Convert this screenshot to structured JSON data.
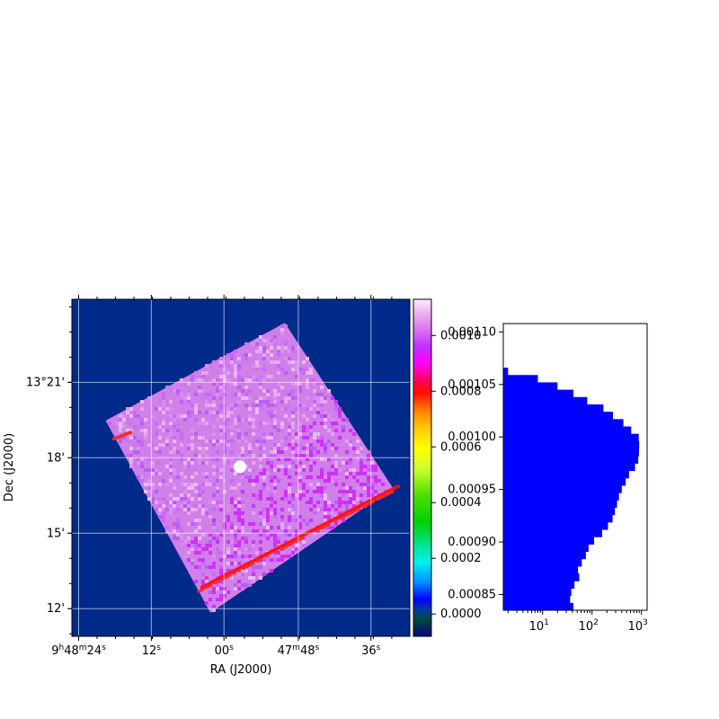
{
  "chart_data": [
    {
      "type": "heatmap",
      "title": "",
      "xlabel": "RA (J2000)",
      "ylabel": "Dec (J2000)",
      "grid": true,
      "background_color": "#002a8a",
      "x_ticks": [
        {
          "label": "9h48m24s",
          "pre": "9",
          "sup1": "h",
          "mid": "48",
          "sup2": "m",
          "post": "24",
          "sup3": "s",
          "pos": 0.02
        },
        {
          "label": "12s",
          "pre": "",
          "sup1": "",
          "mid": "",
          "sup2": "",
          "post": "12",
          "sup3": "s",
          "pos": 0.235
        },
        {
          "label": "00s",
          "pre": "",
          "sup1": "",
          "mid": "",
          "sup2": "",
          "post": "00",
          "sup3": "s",
          "pos": 0.45
        },
        {
          "label": "47m48s",
          "pre": "",
          "sup1": "",
          "mid": "47",
          "sup2": "m",
          "post": "48",
          "sup3": "s",
          "pos": 0.67
        },
        {
          "label": "36s",
          "pre": "",
          "sup1": "",
          "mid": "",
          "sup2": "",
          "post": "36",
          "sup3": "s",
          "pos": 0.885
        }
      ],
      "y_ticks": [
        {
          "label": "13°21'",
          "value": 21
        },
        {
          "label": "18'",
          "value": 18
        },
        {
          "label": "15'",
          "value": 15
        },
        {
          "label": "12'",
          "value": 12
        }
      ],
      "dec_range": [
        10.9,
        24.3
      ],
      "footprint": {
        "corners_fraction": [
          [
            0.1,
            0.36
          ],
          [
            0.63,
            0.07
          ],
          [
            0.95,
            0.56
          ],
          [
            0.41,
            0.93
          ]
        ],
        "base_color": "#d080e8",
        "stripe_color": "#ff1010",
        "point_source_color": "#ffffff"
      }
    },
    {
      "type": "colorbar",
      "colormap": "gist_ncar",
      "range": [
        -8e-05,
        0.00113
      ],
      "ticks": [
        0.0,
        0.0002,
        0.0004,
        0.0006,
        0.0008,
        0.001
      ],
      "tick_labels": [
        "0.0000",
        "0.0002",
        "0.0004",
        "0.0006",
        "0.0008",
        "0.0010"
      ]
    },
    {
      "type": "bar",
      "orientation": "horizontal",
      "xscale": "log",
      "xlim": [
        1.6,
        1300
      ],
      "x_ticks": [
        {
          "base": "10",
          "exp": "1",
          "value": 10
        },
        {
          "base": "10",
          "exp": "2",
          "value": 100
        },
        {
          "base": "10",
          "exp": "3",
          "value": 1000
        }
      ],
      "ylim": [
        0.000835,
        0.001108
      ],
      "y_ticks": [
        "0.00085",
        "0.00090",
        "0.00095",
        "0.00100",
        "0.00105",
        "0.00110"
      ],
      "y_tick_values": [
        0.00085,
        0.0009,
        0.00095,
        0.001,
        0.00105,
        0.0011
      ],
      "bar_color": "#0000ff",
      "bin_edges": [
        0.000835,
        0.000842,
        0.000849,
        0.000856,
        0.000863,
        0.00087,
        0.000877,
        0.000884,
        0.000891,
        0.000898,
        0.000905,
        0.000912,
        0.000919,
        0.000926,
        0.000933,
        0.00094,
        0.000947,
        0.000954,
        0.000961,
        0.000968,
        0.000975,
        0.000982,
        0.000989,
        0.000996,
        0.001003,
        0.00101,
        0.001017,
        0.001024,
        0.001031,
        0.001038,
        0.001045,
        0.001052,
        0.001059,
        0.001066
      ],
      "counts": [
        42,
        36,
        38,
        44,
        55,
        52,
        62,
        75,
        85,
        110,
        160,
        210,
        260,
        290,
        320,
        350,
        400,
        480,
        560,
        740,
        860,
        890,
        900,
        880,
        620,
        430,
        265,
        170,
        80,
        42,
        20,
        8,
        2
      ]
    }
  ]
}
